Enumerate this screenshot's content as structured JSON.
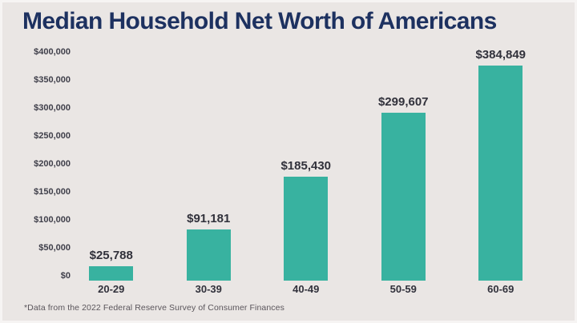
{
  "page": {
    "background_color": "#eae6e4",
    "title_color": "#1d3160",
    "accent_color": "#38b2a0"
  },
  "title": {
    "text": "Median Household Net Worth of Americans"
  },
  "footnote": "*Data from the 2022 Federal Reserve Survey of Consumer Finances",
  "chart_data": {
    "type": "bar",
    "title": "Median Household Net Worth of Americans",
    "categories": [
      "20-29",
      "30-39",
      "40-49",
      "50-59",
      "60-69"
    ],
    "values": [
      25788,
      91181,
      185430,
      299607,
      384849
    ],
    "value_labels": [
      "$25,788",
      "$91,181",
      "$185,430",
      "$299,607",
      "$384,849"
    ],
    "xlabel": "",
    "ylabel": "",
    "ylim": [
      0,
      400000
    ],
    "ytick_step": 50000,
    "ytick_labels": [
      "$0",
      "$50,000",
      "$100,000",
      "$150,000",
      "$200,000",
      "$250,000",
      "$300,000",
      "$350,000",
      "$400,000"
    ],
    "grid": false,
    "legend": null,
    "bar_color": "#38b2a0",
    "annotation": "*Data from the 2022 Federal Reserve Survey of Consumer Finances"
  }
}
